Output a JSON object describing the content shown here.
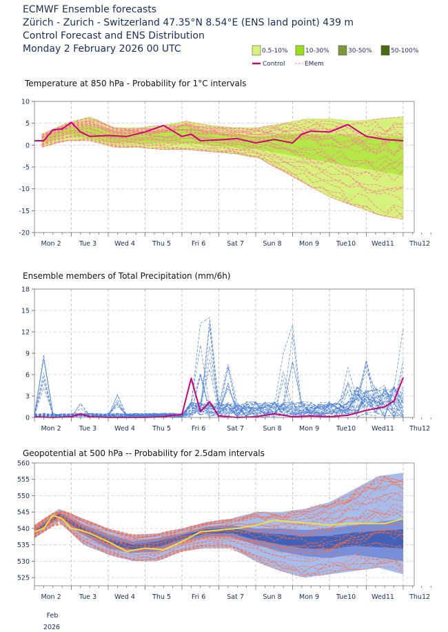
{
  "header": {
    "line1": "ECMWF Ensemble forecasts",
    "line2": "Zürich - Zurich - Switzerland 47.35°N 8.54°E (ENS land point) 439 m",
    "line3": "Control Forecast and ENS Distribution",
    "line4": "Monday  2 February 2026 00 UTC"
  },
  "legend": {
    "items": [
      {
        "label": "0.5-10%",
        "color": "#d6f27c"
      },
      {
        "label": "10-30%",
        "color": "#99e01a"
      },
      {
        "label": "30-50%",
        "color": "#7a9a3c"
      },
      {
        "label": "50-100%",
        "color": "#4a6a10"
      }
    ],
    "control_label": "Control",
    "emem_label": "EMem",
    "control_color": "#cc0077",
    "emem_color": "#ff7799"
  },
  "days": [
    "Mon 2",
    "Tue 3",
    "Wed 4",
    "Thu 5",
    "Fri 6",
    "Sat 7",
    "Sun 8",
    "Mon 9",
    "Tue10",
    "Wed11",
    "Thu12"
  ],
  "sunday_color": "#cc0000",
  "footer": {
    "month": "Feb",
    "year": "2026"
  },
  "chart_data": [
    {
      "type": "area",
      "title": "Temperature at 850 hPa - Probability for 1°C intervals",
      "ylim": [
        -20,
        10
      ],
      "yticks": [
        10,
        5,
        0,
        -5,
        -10,
        -15,
        -20
      ],
      "x_unit": "days since Mon 2 00 UTC",
      "control": {
        "name": "Control",
        "x": [
          0,
          0.25,
          0.5,
          0.75,
          1.0,
          1.25,
          1.5,
          2.0,
          2.5,
          3.0,
          3.5,
          4.0,
          4.25,
          4.5,
          5.0,
          5.5,
          6.0,
          6.5,
          7.0,
          7.25,
          7.5,
          8.0,
          8.5,
          9.0,
          9.5,
          10.0
        ],
        "values": [
          1,
          1,
          3.5,
          3.7,
          5.2,
          3,
          2,
          2.2,
          2,
          3,
          4.5,
          2,
          2.5,
          1,
          1.2,
          1.5,
          0.5,
          1.3,
          0.5,
          2.5,
          3.2,
          3,
          4.7,
          2,
          1.3,
          1
        ]
      },
      "ens_upper": [
        2.5,
        5,
        6.5,
        4,
        4,
        4.5,
        5.5,
        4.5,
        4,
        4,
        5,
        6,
        6,
        5.5,
        6,
        6.5
      ],
      "ens_lower": [
        -0.5,
        1,
        1,
        -0.5,
        -0.5,
        -1,
        -1,
        -1.5,
        -2,
        -3,
        -6,
        -9,
        -12,
        -14,
        -16,
        -17
      ],
      "core_upper": [
        1.8,
        4,
        4.5,
        3,
        3,
        3.5,
        4.5,
        3,
        2.5,
        2,
        2.5,
        2.5,
        2.5,
        2,
        2,
        2
      ],
      "core_lower": [
        0.3,
        2.5,
        1.5,
        0.5,
        0.5,
        0.5,
        0.5,
        0,
        -0.5,
        -1,
        -2,
        -3,
        -4,
        -5,
        -6,
        -7
      ]
    },
    {
      "type": "line",
      "title": "Ensemble members of Total Precipitation (mm/6h)",
      "ylim": [
        0,
        18
      ],
      "yticks": [
        18,
        15,
        12,
        9,
        6,
        3,
        0
      ],
      "x_unit": "days since Mon 2 00 UTC",
      "control": {
        "name": "Control",
        "x": [
          0,
          0.5,
          1.0,
          1.25,
          1.5,
          2.0,
          2.5,
          3.0,
          3.5,
          3.75,
          4.0,
          4.25,
          4.5,
          4.75,
          5.0,
          5.5,
          6.0,
          6.5,
          7.0,
          7.5,
          8.0,
          8.5,
          9.0,
          9.5,
          9.75,
          10.0
        ],
        "values": [
          0.1,
          0,
          0.1,
          0.5,
          0.1,
          0,
          0,
          0,
          0.1,
          0.3,
          0.4,
          5.5,
          0.8,
          2.2,
          0.2,
          0,
          0.1,
          0.5,
          0.1,
          0.2,
          0.1,
          0.3,
          1.0,
          1.5,
          2.3,
          5.6
        ]
      },
      "member_peaks": [
        {
          "x": 0.25,
          "value": 8.8
        },
        {
          "x": 1.25,
          "value": 2.0
        },
        {
          "x": 2.25,
          "value": 3.2
        },
        {
          "x": 4.5,
          "value": 13.2
        },
        {
          "x": 4.75,
          "value": 14.0
        },
        {
          "x": 5.25,
          "value": 7.5
        },
        {
          "x": 6.75,
          "value": 9.0
        },
        {
          "x": 7.0,
          "value": 13.0
        },
        {
          "x": 8.5,
          "value": 7.0
        },
        {
          "x": 9.0,
          "value": 8.0
        },
        {
          "x": 10.0,
          "value": 12.5
        }
      ]
    },
    {
      "type": "area",
      "title": "Geopotential at 500 hPa -- Probability for 2.5dam intervals",
      "ylim": [
        522.5,
        560
      ],
      "yticks": [
        560,
        555,
        550,
        545,
        540,
        535,
        530,
        525
      ],
      "x_unit": "days since Mon 2 00 UTC",
      "control": {
        "name": "Control",
        "x": [
          0,
          0.25,
          0.5,
          0.75,
          1.0,
          1.25,
          1.5,
          2.0,
          2.5,
          3.0,
          3.5,
          4.0,
          4.5,
          5.0,
          5.5,
          6.0,
          6.5,
          7.0,
          7.5,
          8.0,
          8.5,
          9.0,
          9.5,
          10.0
        ],
        "values": [
          539,
          540,
          544,
          543,
          540,
          539.5,
          538.5,
          536,
          533,
          534,
          533.5,
          536,
          539,
          539.5,
          540,
          541,
          542.5,
          542,
          541.5,
          541,
          541.5,
          541.5,
          541.5,
          543
        ]
      },
      "ens_upper": [
        541,
        546,
        543,
        540,
        538,
        538.5,
        540,
        542,
        543,
        545,
        545,
        546,
        548,
        552,
        556,
        557
      ],
      "ens_lower": [
        537,
        542,
        535,
        532,
        530,
        530,
        533,
        534,
        534,
        530,
        527,
        525,
        526,
        527,
        528,
        526
      ],
      "core_upper": [
        540,
        545,
        541,
        538,
        536,
        537,
        538.5,
        540.5,
        541,
        540,
        540,
        539.5,
        540,
        541,
        542,
        543
      ],
      "core_lower": [
        538,
        543,
        538,
        534,
        532.5,
        533,
        536,
        537.5,
        537.5,
        535,
        533,
        531.5,
        531,
        532,
        531,
        530
      ]
    }
  ]
}
